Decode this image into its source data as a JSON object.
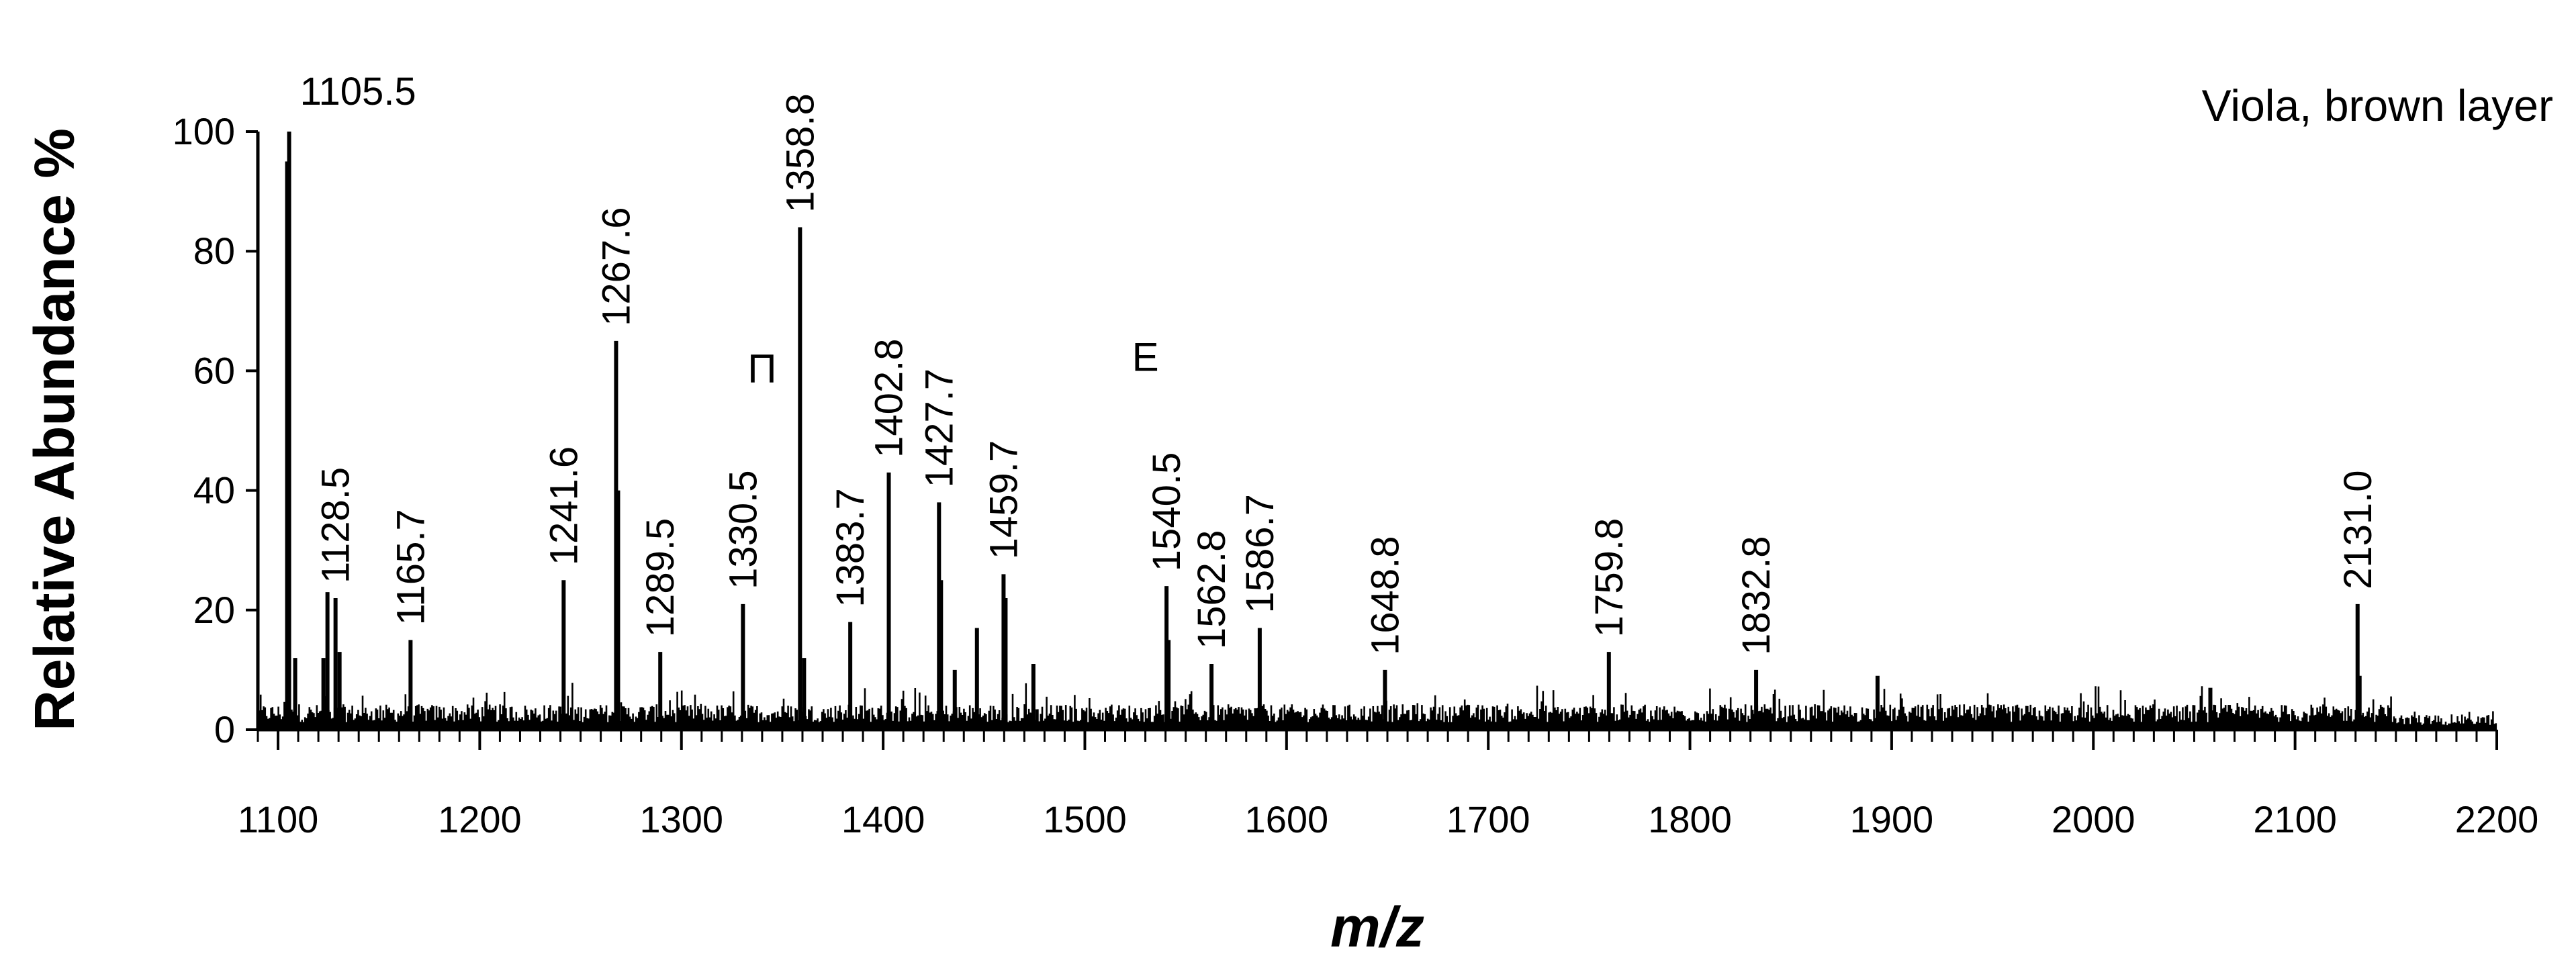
{
  "chart_data": {
    "type": "line",
    "title": "",
    "annotation": "Viola, brown layer",
    "xlabel": "m/z",
    "ylabel": "Relative Abundance %",
    "xlim": [
      1090,
      2200
    ],
    "ylim": [
      0,
      100
    ],
    "x_ticks": [
      1100,
      1200,
      1300,
      1400,
      1500,
      1600,
      1700,
      1800,
      1900,
      2000,
      2100,
      2200
    ],
    "x_minor_step": 10,
    "y_ticks": [
      0,
      20,
      40,
      60,
      80,
      100
    ],
    "series": [
      {
        "name": "spectrum",
        "peaks": [
          {
            "mz": 1105.5,
            "intensity": 100,
            "label": "1105.5"
          },
          {
            "mz": 1104.5,
            "intensity": 95,
            "label": ""
          },
          {
            "mz": 1108.5,
            "intensity": 12,
            "label": ""
          },
          {
            "mz": 1122.5,
            "intensity": 12,
            "label": ""
          },
          {
            "mz": 1124.5,
            "intensity": 23,
            "label": ""
          },
          {
            "mz": 1128.5,
            "intensity": 22,
            "label": "1128.5"
          },
          {
            "mz": 1130.5,
            "intensity": 13,
            "label": ""
          },
          {
            "mz": 1165.7,
            "intensity": 15,
            "label": "1165.7"
          },
          {
            "mz": 1241.6,
            "intensity": 25,
            "label": "1241.6"
          },
          {
            "mz": 1267.6,
            "intensity": 65,
            "label": "1267.6"
          },
          {
            "mz": 1268.6,
            "intensity": 40,
            "label": ""
          },
          {
            "mz": 1289.5,
            "intensity": 13,
            "label": "1289.5"
          },
          {
            "mz": 1330.5,
            "intensity": 21,
            "label": "1330.5"
          },
          {
            "mz": 1358.8,
            "intensity": 84,
            "label": "1358.8"
          },
          {
            "mz": 1360.8,
            "intensity": 12,
            "label": ""
          },
          {
            "mz": 1383.7,
            "intensity": 18,
            "label": "1383.7"
          },
          {
            "mz": 1402.8,
            "intensity": 43,
            "label": "1402.8"
          },
          {
            "mz": 1427.7,
            "intensity": 38,
            "label": "1427.7"
          },
          {
            "mz": 1428.7,
            "intensity": 25,
            "label": ""
          },
          {
            "mz": 1435.5,
            "intensity": 10,
            "label": ""
          },
          {
            "mz": 1446.5,
            "intensity": 17,
            "label": ""
          },
          {
            "mz": 1459.7,
            "intensity": 26,
            "label": "1459.7"
          },
          {
            "mz": 1460.7,
            "intensity": 22,
            "label": ""
          },
          {
            "mz": 1474.5,
            "intensity": 11,
            "label": ""
          },
          {
            "mz": 1540.5,
            "intensity": 24,
            "label": "1540.5"
          },
          {
            "mz": 1541.5,
            "intensity": 15,
            "label": ""
          },
          {
            "mz": 1562.8,
            "intensity": 11,
            "label": "1562.8"
          },
          {
            "mz": 1586.7,
            "intensity": 17,
            "label": "1586.7"
          },
          {
            "mz": 1648.8,
            "intensity": 10,
            "label": "1648.8"
          },
          {
            "mz": 1759.8,
            "intensity": 13,
            "label": "1759.8"
          },
          {
            "mz": 1832.8,
            "intensity": 10,
            "label": "1832.8"
          },
          {
            "mz": 1893.0,
            "intensity": 9,
            "label": ""
          },
          {
            "mz": 2058.0,
            "intensity": 7,
            "label": ""
          },
          {
            "mz": 2131.0,
            "intensity": 21,
            "label": "2131.0"
          },
          {
            "mz": 2132.0,
            "intensity": 9,
            "label": ""
          }
        ],
        "baseline_level": 2.5,
        "baseline_noise": 3.0
      }
    ],
    "markers": [
      {
        "mz": 1340,
        "y": 58,
        "symbol": "Π"
      },
      {
        "mz": 1530,
        "y": 60,
        "symbol": "Ε"
      }
    ]
  }
}
